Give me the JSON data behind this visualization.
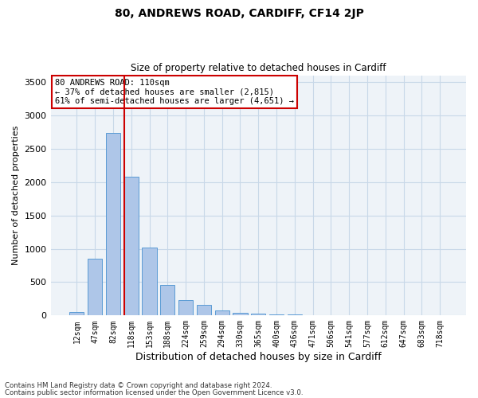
{
  "title1": "80, ANDREWS ROAD, CARDIFF, CF14 2JP",
  "title2": "Size of property relative to detached houses in Cardiff",
  "xlabel": "Distribution of detached houses by size in Cardiff",
  "ylabel": "Number of detached properties",
  "categories": [
    "12sqm",
    "47sqm",
    "82sqm",
    "118sqm",
    "153sqm",
    "188sqm",
    "224sqm",
    "259sqm",
    "294sqm",
    "330sqm",
    "365sqm",
    "400sqm",
    "436sqm",
    "471sqm",
    "506sqm",
    "541sqm",
    "577sqm",
    "612sqm",
    "647sqm",
    "683sqm",
    "718sqm"
  ],
  "values": [
    50,
    850,
    2730,
    2080,
    1020,
    460,
    235,
    155,
    70,
    45,
    30,
    20,
    15,
    8,
    3,
    2,
    1,
    0,
    0,
    0,
    0
  ],
  "bar_color": "#aec6e8",
  "bar_edge_color": "#5b9bd5",
  "grid_color": "#c8d8e8",
  "bg_color": "#eef3f8",
  "vline_color": "#cc0000",
  "annotation_text": "80 ANDREWS ROAD: 110sqm\n← 37% of detached houses are smaller (2,815)\n61% of semi-detached houses are larger (4,651) →",
  "annotation_box_color": "#ffffff",
  "annotation_box_edge": "#cc0000",
  "footnote1": "Contains HM Land Registry data © Crown copyright and database right 2024.",
  "footnote2": "Contains public sector information licensed under the Open Government Licence v3.0.",
  "ylim": [
    0,
    3600
  ],
  "yticks": [
    0,
    500,
    1000,
    1500,
    2000,
    2500,
    3000,
    3500
  ]
}
